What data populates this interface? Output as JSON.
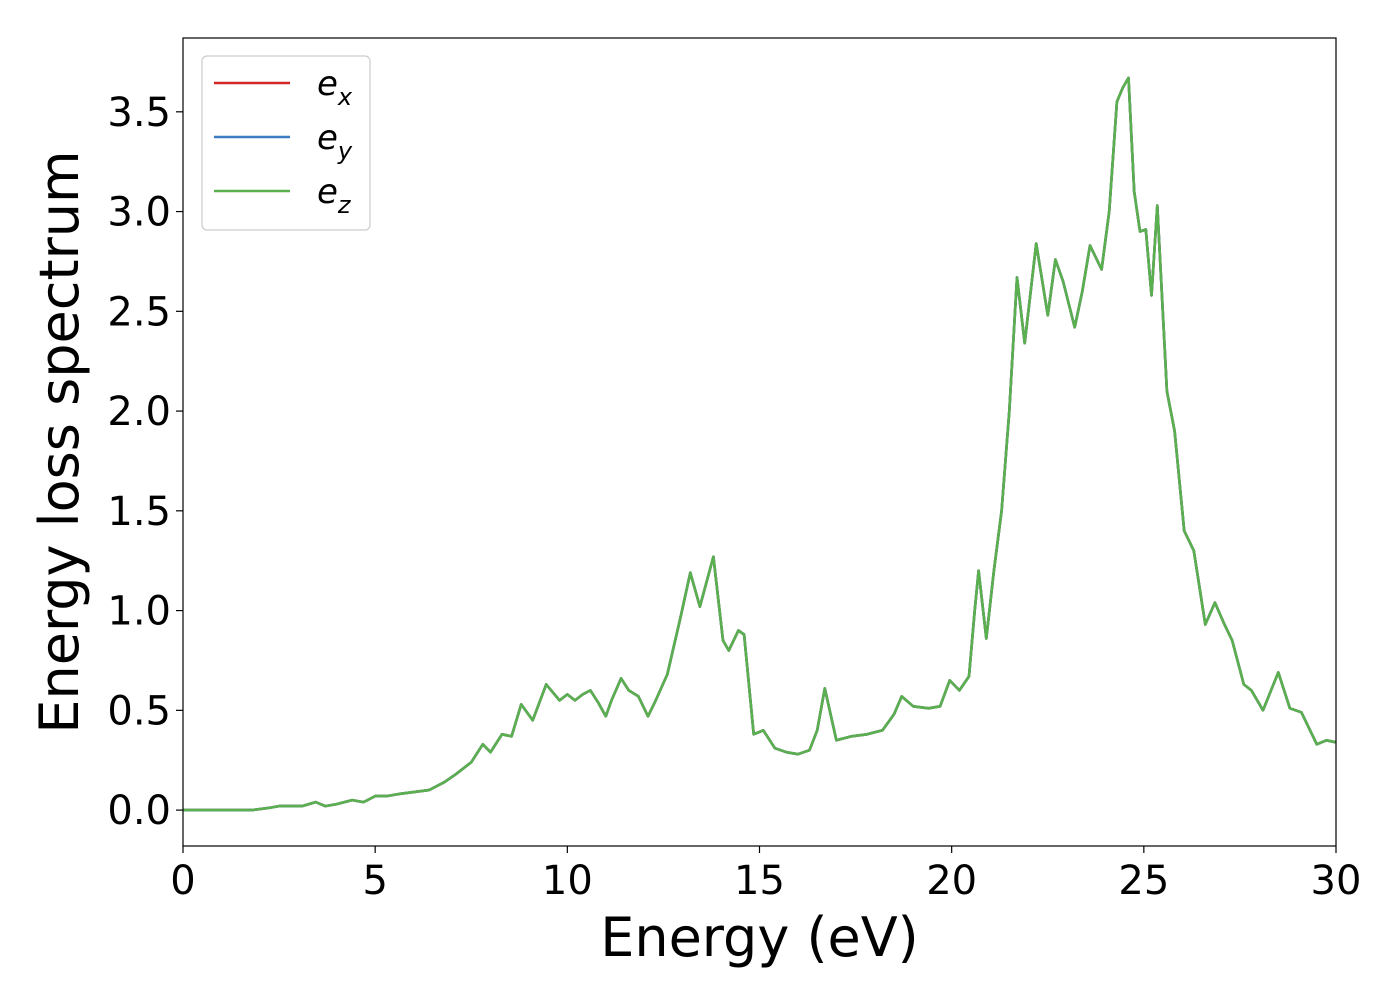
{
  "chart_data": {
    "type": "line",
    "title": "",
    "xlabel": "Energy (eV)",
    "ylabel": "Energy loss spectrum",
    "xlim": [
      0,
      30
    ],
    "ylim": [
      -0.18,
      3.87
    ],
    "xticks": [
      0,
      5,
      10,
      15,
      20,
      25,
      30
    ],
    "xtick_labels": [
      "0",
      "5",
      "10",
      "15",
      "20",
      "25",
      "30"
    ],
    "yticks": [
      0.0,
      0.5,
      1.0,
      1.5,
      2.0,
      2.5,
      3.0,
      3.5
    ],
    "ytick_labels": [
      "0.0",
      "0.5",
      "1.0",
      "1.5",
      "2.0",
      "2.5",
      "3.0",
      "3.5"
    ],
    "grid": false,
    "legend_position": "top-left",
    "legend": [
      {
        "base": "e",
        "sub": "x",
        "color": "#d62728"
      },
      {
        "base": "e",
        "sub": "y",
        "color": "#3a7dc0"
      },
      {
        "base": "e",
        "sub": "z",
        "color": "#5aaf4f"
      }
    ],
    "x": [
      0,
      1,
      1.8,
      2.2,
      2.5,
      2.8,
      3.1,
      3.45,
      3.7,
      4.0,
      4.4,
      4.7,
      5.0,
      5.3,
      5.6,
      6.0,
      6.4,
      6.8,
      7.1,
      7.5,
      7.8,
      8.0,
      8.3,
      8.55,
      8.8,
      9.1,
      9.45,
      9.8,
      10.0,
      10.2,
      10.4,
      10.6,
      10.8,
      11.0,
      11.15,
      11.4,
      11.6,
      11.85,
      12.1,
      12.3,
      12.6,
      12.95,
      13.2,
      13.45,
      13.8,
      14.05,
      14.2,
      14.45,
      14.6,
      14.85,
      15.1,
      15.4,
      15.7,
      16.0,
      16.3,
      16.5,
      16.7,
      17.0,
      17.4,
      17.8,
      18.2,
      18.5,
      18.7,
      19.0,
      19.4,
      19.7,
      19.95,
      20.2,
      20.45,
      20.6,
      20.7,
      20.9,
      21.1,
      21.3,
      21.5,
      21.7,
      21.9,
      22.2,
      22.5,
      22.7,
      22.9,
      23.2,
      23.4,
      23.6,
      23.9,
      24.1,
      24.3,
      24.45,
      24.6,
      24.75,
      24.9,
      25.05,
      25.2,
      25.35,
      25.6,
      25.8,
      26.05,
      26.3,
      26.6,
      26.85,
      27.1,
      27.3,
      27.6,
      27.8,
      28.1,
      28.5,
      28.8,
      29.1,
      29.5,
      29.75,
      30
    ],
    "series": [
      {
        "name": "e_x",
        "color": "#d62728",
        "y": [
          0,
          0,
          0,
          0.01,
          0.02,
          0.02,
          0.02,
          0.04,
          0.02,
          0.03,
          0.05,
          0.04,
          0.07,
          0.07,
          0.08,
          0.09,
          0.1,
          0.14,
          0.18,
          0.24,
          0.33,
          0.29,
          0.38,
          0.37,
          0.53,
          0.45,
          0.63,
          0.55,
          0.58,
          0.55,
          0.58,
          0.6,
          0.54,
          0.47,
          0.55,
          0.66,
          0.6,
          0.57,
          0.47,
          0.55,
          0.68,
          0.97,
          1.19,
          1.02,
          1.27,
          0.85,
          0.8,
          0.9,
          0.88,
          0.38,
          0.4,
          0.31,
          0.29,
          0.28,
          0.3,
          0.4,
          0.61,
          0.35,
          0.37,
          0.38,
          0.4,
          0.48,
          0.57,
          0.52,
          0.51,
          0.52,
          0.65,
          0.6,
          0.67,
          1.0,
          1.2,
          0.86,
          1.2,
          1.5,
          2.0,
          2.67,
          2.34,
          2.84,
          2.48,
          2.76,
          2.65,
          2.42,
          2.6,
          2.83,
          2.71,
          3.0,
          3.55,
          3.62,
          3.67,
          3.1,
          2.9,
          2.91,
          2.58,
          3.03,
          2.1,
          1.9,
          1.4,
          1.3,
          0.93,
          1.04,
          0.93,
          0.85,
          0.63,
          0.6,
          0.5,
          0.69,
          0.51,
          0.49,
          0.33,
          0.35,
          0.34
        ]
      },
      {
        "name": "e_y",
        "color": "#3a7dc0",
        "y": [
          0,
          0,
          0,
          0.01,
          0.02,
          0.02,
          0.02,
          0.04,
          0.02,
          0.03,
          0.05,
          0.04,
          0.07,
          0.07,
          0.08,
          0.09,
          0.1,
          0.14,
          0.18,
          0.24,
          0.33,
          0.29,
          0.38,
          0.37,
          0.53,
          0.45,
          0.63,
          0.55,
          0.58,
          0.55,
          0.58,
          0.6,
          0.54,
          0.47,
          0.55,
          0.66,
          0.6,
          0.57,
          0.47,
          0.55,
          0.68,
          0.97,
          1.19,
          1.02,
          1.27,
          0.85,
          0.8,
          0.9,
          0.88,
          0.38,
          0.4,
          0.31,
          0.29,
          0.28,
          0.3,
          0.4,
          0.61,
          0.35,
          0.37,
          0.38,
          0.4,
          0.48,
          0.57,
          0.52,
          0.51,
          0.52,
          0.65,
          0.6,
          0.67,
          1.0,
          1.2,
          0.86,
          1.2,
          1.5,
          2.0,
          2.67,
          2.34,
          2.84,
          2.48,
          2.76,
          2.65,
          2.42,
          2.6,
          2.83,
          2.71,
          3.0,
          3.55,
          3.62,
          3.67,
          3.1,
          2.9,
          2.91,
          2.58,
          3.03,
          2.1,
          1.9,
          1.4,
          1.3,
          0.93,
          1.04,
          0.93,
          0.85,
          0.63,
          0.6,
          0.5,
          0.69,
          0.51,
          0.49,
          0.33,
          0.35,
          0.34
        ]
      },
      {
        "name": "e_z",
        "color": "#5aaf4f",
        "y": [
          0,
          0,
          0,
          0.01,
          0.02,
          0.02,
          0.02,
          0.04,
          0.02,
          0.03,
          0.05,
          0.04,
          0.07,
          0.07,
          0.08,
          0.09,
          0.1,
          0.14,
          0.18,
          0.24,
          0.33,
          0.29,
          0.38,
          0.37,
          0.53,
          0.45,
          0.63,
          0.55,
          0.58,
          0.55,
          0.58,
          0.6,
          0.54,
          0.47,
          0.55,
          0.66,
          0.6,
          0.57,
          0.47,
          0.55,
          0.68,
          0.97,
          1.19,
          1.02,
          1.27,
          0.85,
          0.8,
          0.9,
          0.88,
          0.38,
          0.4,
          0.31,
          0.29,
          0.28,
          0.3,
          0.4,
          0.61,
          0.35,
          0.37,
          0.38,
          0.4,
          0.48,
          0.57,
          0.52,
          0.51,
          0.52,
          0.65,
          0.6,
          0.67,
          1.0,
          1.2,
          0.86,
          1.2,
          1.5,
          2.0,
          2.67,
          2.34,
          2.84,
          2.48,
          2.76,
          2.65,
          2.42,
          2.6,
          2.83,
          2.71,
          3.0,
          3.55,
          3.62,
          3.67,
          3.1,
          2.9,
          2.91,
          2.58,
          3.03,
          2.1,
          1.9,
          1.4,
          1.3,
          0.93,
          1.04,
          0.93,
          0.85,
          0.63,
          0.6,
          0.5,
          0.69,
          0.51,
          0.49,
          0.33,
          0.35,
          0.34
        ]
      }
    ]
  }
}
